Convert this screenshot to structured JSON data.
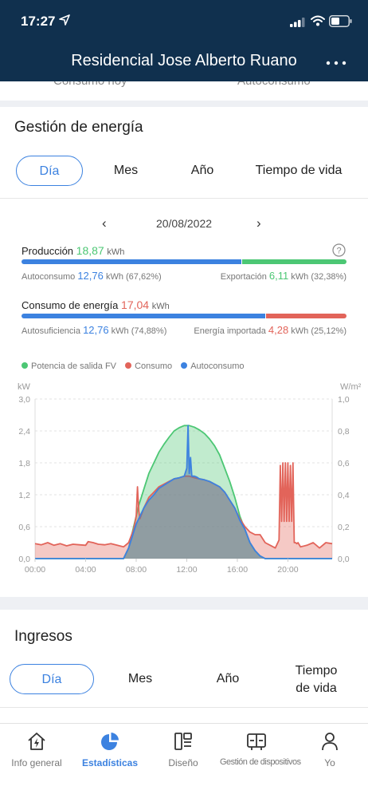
{
  "status_bar": {
    "time": "17:27"
  },
  "header": {
    "title": "Residencial Jose Alberto Ruano"
  },
  "peek": {
    "left": "Consumo hoy",
    "right": "Autoconsumo"
  },
  "energy": {
    "title": "Gestión de energía",
    "tabs": [
      "Día",
      "Mes",
      "Año",
      "Tiempo de vida"
    ],
    "active_tab": 0,
    "date": "20/08/2022",
    "production": {
      "label": "Producción",
      "value": "18,87",
      "unit": "kWh",
      "self_label": "Autoconsumo",
      "self_value": "12,76",
      "self_unit": "kWh",
      "self_pct": "(67,62%)",
      "export_label": "Exportación",
      "export_value": "6,11",
      "export_unit": "kWh",
      "export_pct": "(32,38%)",
      "self_fraction": 0.6762
    },
    "consumption": {
      "label": "Consumo de energía",
      "value": "17,04",
      "unit": "kWh",
      "self_label": "Autosuficiencia",
      "self_value": "12,76",
      "self_unit": "kWh",
      "self_pct": "(74,88%)",
      "import_label": "Energía importada",
      "import_value": "4,28",
      "import_unit": "kWh",
      "import_pct": "(25,12%)",
      "self_fraction": 0.7488
    },
    "legend": [
      "Potencia de salida FV",
      "Consumo",
      "Autoconsumo"
    ],
    "colors": {
      "pv": "#4cc774",
      "consumption": "#e2645a",
      "self": "#3c82e0",
      "accent": "#3c82e0",
      "header": "#10304e"
    }
  },
  "chart_data": {
    "type": "area",
    "ylabel_left": "kW",
    "ylabel_right": "W/m²",
    "ylim": [
      0,
      3.0
    ],
    "ylim_right": [
      0,
      1.0
    ],
    "xlim": [
      0,
      23.5
    ],
    "yticks": [
      "0,0",
      "0,6",
      "1,2",
      "1,8",
      "2,4",
      "3,0"
    ],
    "yticks_right": [
      "0,0",
      "0,2",
      "0,4",
      "0,6",
      "0,8",
      "1,0"
    ],
    "xticks": [
      "00:00",
      "04:00",
      "08:00",
      "12:00",
      "16:00",
      "20:00"
    ],
    "grid": true,
    "legend_position": "top",
    "series": [
      {
        "name": "Potencia de salida FV",
        "x": [
          0,
          7.0,
          7.4,
          7.8,
          8.2,
          8.6,
          9.0,
          9.4,
          9.8,
          10.2,
          10.6,
          11.0,
          11.4,
          11.8,
          12.2,
          12.6,
          13.0,
          13.4,
          13.8,
          14.2,
          14.6,
          15.0,
          15.4,
          15.8,
          16.2,
          16.6,
          17.0,
          17.4,
          17.8,
          18.2,
          23.5
        ],
        "values": [
          0,
          0,
          0.2,
          0.6,
          1.0,
          1.3,
          1.6,
          1.8,
          2.0,
          2.15,
          2.28,
          2.4,
          2.46,
          2.5,
          2.5,
          2.47,
          2.42,
          2.35,
          2.25,
          2.12,
          1.95,
          1.7,
          1.45,
          1.15,
          0.8,
          0.55,
          0.3,
          0.15,
          0.05,
          0,
          0
        ]
      },
      {
        "name": "Consumo",
        "x": [
          0,
          0.5,
          1,
          1.5,
          2,
          2.5,
          3,
          3.5,
          4,
          4.2,
          4.6,
          5,
          5.5,
          6,
          6.5,
          7.0,
          7.4,
          7.8,
          8.0,
          8.1,
          8.2,
          8.3,
          8.6,
          9.0,
          9.4,
          9.8,
          10.2,
          10.6,
          11.0,
          11.4,
          11.8,
          12.2,
          12.6,
          13.0,
          13.4,
          13.8,
          14.2,
          14.6,
          15.0,
          15.4,
          15.8,
          16.2,
          16.6,
          17.0,
          17.4,
          17.8,
          18.2,
          18.6,
          19.0,
          19.3,
          19.4,
          19.5,
          19.6,
          19.7,
          19.8,
          19.9,
          20.0,
          20.1,
          20.2,
          20.3,
          20.4,
          20.5,
          20.6,
          20.7,
          20.8,
          21.0,
          21.5,
          22.0,
          22.5,
          23.0,
          23.5
        ],
        "values": [
          0.28,
          0.26,
          0.3,
          0.25,
          0.28,
          0.24,
          0.27,
          0.26,
          0.25,
          0.32,
          0.3,
          0.27,
          0.26,
          0.28,
          0.25,
          0.22,
          0.3,
          0.55,
          0.8,
          1.35,
          0.9,
          0.75,
          0.95,
          1.15,
          1.25,
          1.35,
          1.4,
          1.45,
          1.5,
          1.52,
          1.55,
          1.55,
          1.52,
          1.5,
          1.48,
          1.45,
          1.4,
          1.35,
          1.25,
          1.1,
          0.95,
          0.75,
          0.6,
          0.5,
          0.45,
          0.45,
          0.3,
          0.25,
          0.2,
          0.35,
          1.75,
          0.7,
          1.8,
          0.7,
          1.8,
          0.7,
          1.8,
          0.7,
          1.75,
          0.7,
          1.8,
          0.3,
          0.3,
          0.28,
          0.3,
          0.22,
          0.25,
          0.3,
          0.2,
          0.3,
          0.28
        ]
      },
      {
        "name": "Autoconsumo",
        "x": [
          0,
          7.0,
          7.4,
          7.8,
          8.0,
          8.2,
          8.6,
          9.0,
          9.4,
          9.8,
          10.2,
          10.6,
          11.0,
          11.4,
          11.8,
          12.0,
          12.1,
          12.2,
          12.3,
          12.4,
          12.6,
          12.8,
          13.0,
          13.4,
          13.8,
          14.2,
          14.6,
          15.0,
          15.4,
          15.8,
          16.2,
          16.6,
          17.0,
          17.4,
          17.8,
          18.2,
          23.5
        ],
        "values": [
          0,
          0,
          0.2,
          0.5,
          0.65,
          0.75,
          0.95,
          1.1,
          1.2,
          1.32,
          1.38,
          1.44,
          1.5,
          1.52,
          1.55,
          1.7,
          2.5,
          1.6,
          1.9,
          1.55,
          1.55,
          1.53,
          1.5,
          1.48,
          1.45,
          1.4,
          1.35,
          1.25,
          1.1,
          0.95,
          0.72,
          0.55,
          0.3,
          0.15,
          0.05,
          0,
          0
        ]
      }
    ]
  },
  "income": {
    "title": "Ingresos",
    "tabs": [
      "Día",
      "Mes",
      "Año",
      "Tiempo",
      "de vida"
    ],
    "active_tab": 0
  },
  "tabbar": {
    "items": [
      "Info general",
      "Estadísticas",
      "Diseño",
      "Gestión de dispositivos",
      "Yo"
    ],
    "active": 1
  }
}
